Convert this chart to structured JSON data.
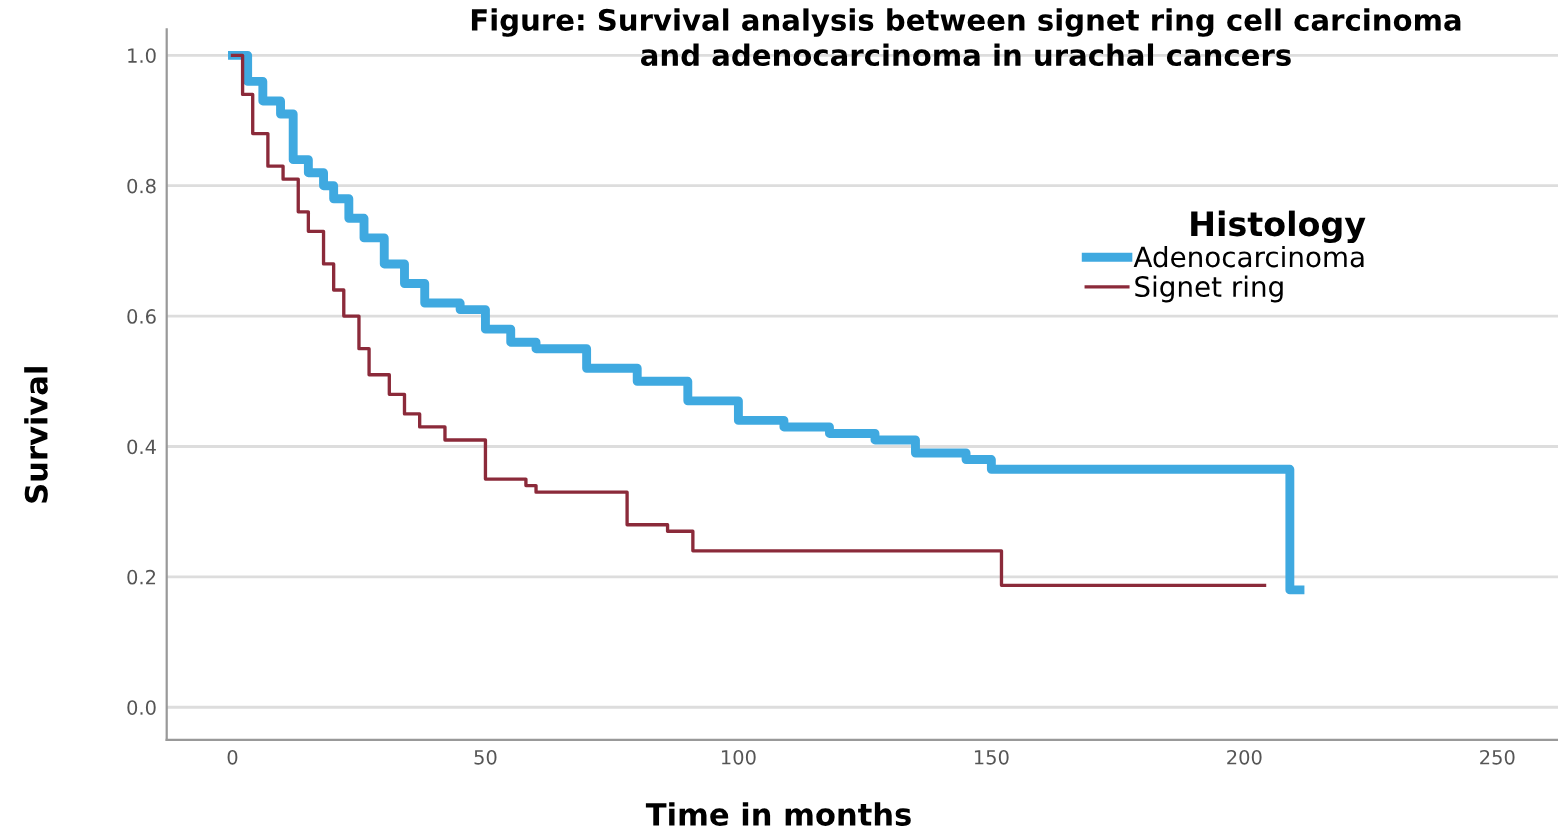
{
  "chart_data": {
    "type": "step",
    "title": "Figure: Survival analysis between signet ring cell carcinoma\nand adenocarcinoma in urachal cancers",
    "xlabel": "Time in months",
    "ylabel": "Survival",
    "legend_title": "Histology",
    "series": [
      {
        "name": "Adenocarcinoma",
        "color": "#3fa9e0",
        "x": [
          0,
          3,
          6,
          9.5,
          12,
          15,
          18,
          20,
          23,
          26,
          30,
          34,
          38,
          45,
          50,
          55,
          60,
          70,
          80,
          90,
          100,
          109,
          118,
          127,
          135,
          145,
          150,
          209,
          211
        ],
        "values": [
          1.0,
          0.96,
          0.93,
          0.91,
          0.84,
          0.82,
          0.8,
          0.78,
          0.75,
          0.72,
          0.68,
          0.65,
          0.62,
          0.61,
          0.58,
          0.56,
          0.55,
          0.52,
          0.5,
          0.47,
          0.44,
          0.43,
          0.42,
          0.41,
          0.39,
          0.38,
          0.365,
          0.18,
          0.18
        ]
      },
      {
        "name": "Signet ring",
        "color": "#8b2a3a",
        "x": [
          0,
          2,
          4,
          7,
          10,
          13,
          15,
          18,
          20,
          22,
          25,
          27,
          31,
          34,
          37,
          42,
          50,
          58,
          60,
          78,
          80,
          86,
          91,
          152,
          204
        ],
        "values": [
          1.0,
          0.94,
          0.88,
          0.83,
          0.81,
          0.76,
          0.73,
          0.68,
          0.64,
          0.6,
          0.55,
          0.51,
          0.48,
          0.45,
          0.43,
          0.41,
          0.35,
          0.34,
          0.33,
          0.28,
          0.28,
          0.27,
          0.24,
          0.187,
          0.187
        ]
      }
    ],
    "xlim": [
      -13,
      262
    ],
    "ylim": [
      -0.05,
      1.04
    ],
    "xticks": [
      0,
      50,
      100,
      150,
      200,
      250
    ],
    "yticks": [
      {
        "value": 0,
        "label": "0.0"
      },
      {
        "value": 0.2,
        "label": "0.2"
      },
      {
        "value": 0.4,
        "label": "0.4"
      },
      {
        "value": 0.6,
        "label": "0.6"
      },
      {
        "value": 0.8,
        "label": "0.8"
      },
      {
        "value": 1,
        "label": "1.0"
      }
    ],
    "grid": "y",
    "legend": "top right",
    "line_style": "solid"
  }
}
